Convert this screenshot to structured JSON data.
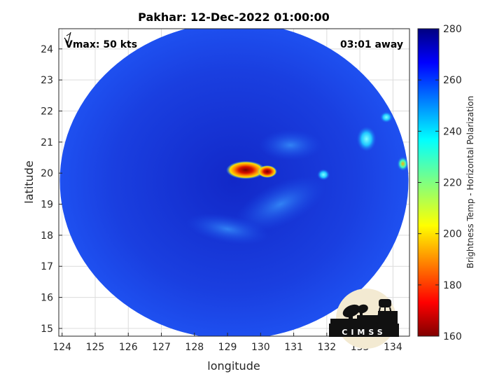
{
  "chart_data": {
    "type": "heatmap",
    "title": "Pakhar: 12-Dec-2022 01:00:00",
    "xlabel": "longitude",
    "ylabel": "latitude",
    "xlim": [
      123.9,
      134.5
    ],
    "ylim": [
      14.75,
      24.65
    ],
    "xticks": [
      124,
      125,
      126,
      127,
      128,
      129,
      130,
      131,
      132,
      133,
      134
    ],
    "yticks": [
      15,
      16,
      17,
      18,
      19,
      20,
      21,
      22,
      23,
      24
    ],
    "grid": true,
    "annotations": {
      "vmax": "Vmax: 50 kts",
      "time_offset": "03:01 away"
    },
    "colorbar": {
      "label": "Brightness Temp - Horizontal Polarization",
      "min": 160,
      "max": 280,
      "ticks": [
        160,
        180,
        200,
        220,
        240,
        260,
        280
      ],
      "colormap": "jet"
    },
    "field": {
      "swath_center": [
        129.2,
        19.75
      ],
      "background_value": 264,
      "features": [
        {
          "lon": 129.55,
          "lat": 20.1,
          "value": 172
        },
        {
          "lon": 130.2,
          "lat": 20.05,
          "value": 166
        },
        {
          "lon": 131.9,
          "lat": 19.95,
          "value": 228
        },
        {
          "lon": 133.8,
          "lat": 21.8,
          "value": 232
        },
        {
          "lon": 134.3,
          "lat": 20.3,
          "value": 210
        },
        {
          "lon": 133.2,
          "lat": 21.1,
          "value": 236
        }
      ]
    }
  },
  "logo": {
    "text": "CIMSS"
  },
  "colors": {
    "background": "#ffffff",
    "axis": "#262626",
    "grid": "#dcdcdc"
  }
}
